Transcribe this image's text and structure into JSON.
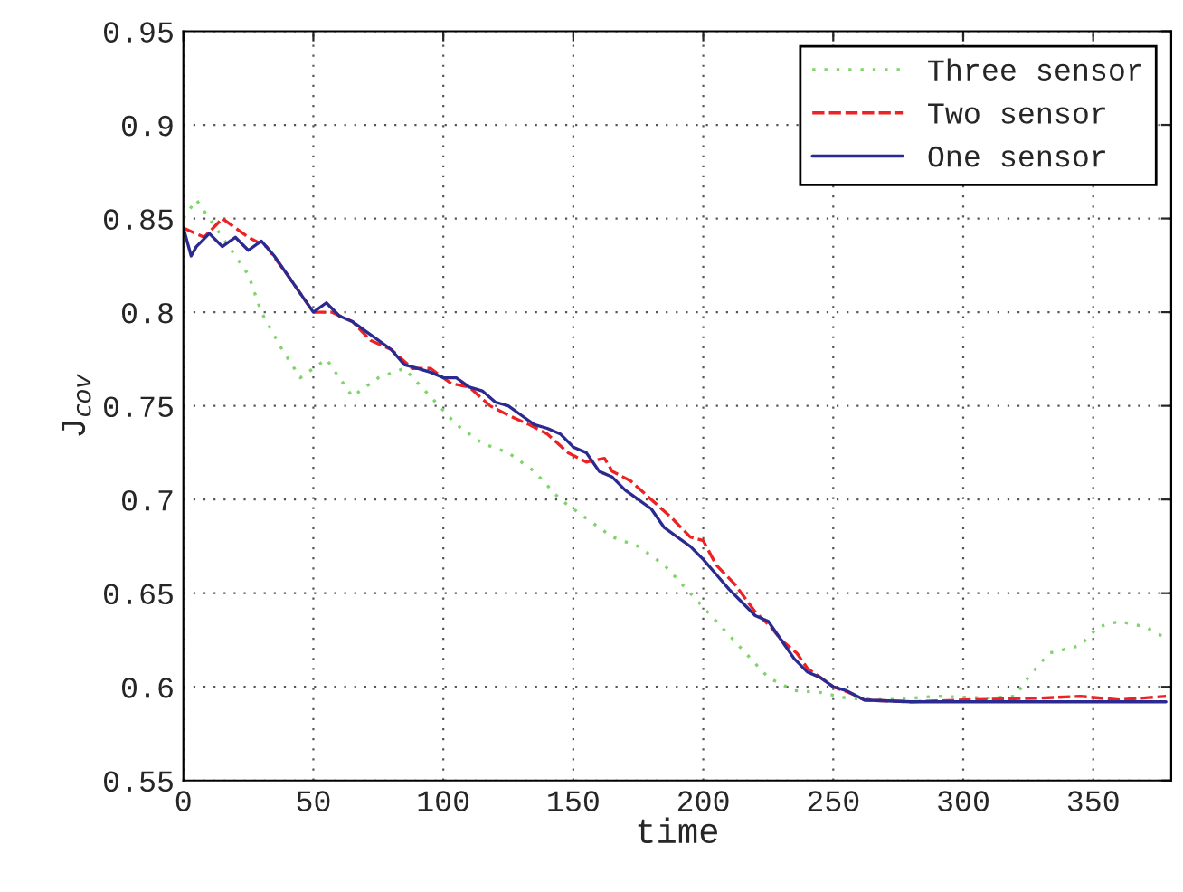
{
  "chart_data": {
    "type": "line",
    "xlabel": "time",
    "ylabel": "J$_{cov}$",
    "xlim": [
      0,
      380
    ],
    "xticks": [
      0,
      50,
      100,
      150,
      200,
      250,
      300,
      350
    ],
    "ylim": [
      0.55,
      0.95
    ],
    "yticks": [
      0.55,
      0.6,
      0.65,
      0.7,
      0.75,
      0.8,
      0.85,
      0.9,
      0.95
    ],
    "grid": true,
    "legend": "top right",
    "series": [
      {
        "name": "Three sensor",
        "color": "#7fd46a",
        "line_style": "dotted",
        "x": [
          0,
          5,
          15,
          25,
          30,
          38,
          45,
          55,
          65,
          75,
          85,
          95,
          105,
          115,
          125,
          135,
          145,
          155,
          165,
          175,
          185,
          195,
          205,
          215,
          225,
          235,
          245,
          255,
          270,
          290,
          310,
          320,
          325,
          333,
          345,
          352,
          360,
          370,
          378
        ],
        "values": [
          0.85,
          0.86,
          0.84,
          0.82,
          0.8,
          0.78,
          0.765,
          0.775,
          0.755,
          0.765,
          0.77,
          0.755,
          0.74,
          0.73,
          0.725,
          0.715,
          0.7,
          0.69,
          0.68,
          0.675,
          0.665,
          0.65,
          0.635,
          0.62,
          0.605,
          0.598,
          0.597,
          0.594,
          0.593,
          0.595,
          0.594,
          0.595,
          0.605,
          0.618,
          0.622,
          0.632,
          0.635,
          0.632,
          0.626
        ]
      },
      {
        "name": "Two sensor",
        "color": "#ee2222",
        "line_style": "dashed",
        "x": [
          0,
          8,
          15,
          25,
          32,
          40,
          50,
          57,
          65,
          72,
          80,
          88,
          95,
          103,
          110,
          118,
          125,
          133,
          140,
          148,
          155,
          162,
          165,
          172,
          180,
          188,
          195,
          200,
          205,
          212,
          220,
          226,
          230,
          236,
          240,
          246,
          250,
          256,
          262,
          280,
          300,
          330,
          345,
          360,
          378
        ],
        "values": [
          0.845,
          0.84,
          0.85,
          0.84,
          0.835,
          0.82,
          0.8,
          0.8,
          0.795,
          0.785,
          0.78,
          0.77,
          0.77,
          0.762,
          0.76,
          0.75,
          0.745,
          0.74,
          0.735,
          0.725,
          0.72,
          0.722,
          0.715,
          0.71,
          0.7,
          0.69,
          0.68,
          0.678,
          0.665,
          0.655,
          0.64,
          0.632,
          0.625,
          0.618,
          0.61,
          0.604,
          0.6,
          0.597,
          0.593,
          0.592,
          0.593,
          0.594,
          0.595,
          0.593,
          0.595
        ]
      },
      {
        "name": "One sensor",
        "color": "#2a2a90",
        "line_style": "solid",
        "x": [
          0,
          3,
          5,
          10,
          15,
          20,
          25,
          30,
          35,
          40,
          45,
          50,
          55,
          60,
          65,
          70,
          75,
          80,
          85,
          90,
          95,
          100,
          105,
          110,
          115,
          120,
          125,
          130,
          135,
          140,
          145,
          150,
          155,
          160,
          165,
          170,
          175,
          180,
          185,
          190,
          195,
          200,
          205,
          210,
          215,
          220,
          225,
          230,
          235,
          240,
          245,
          250,
          255,
          262,
          280,
          300,
          330,
          350,
          378
        ],
        "values": [
          0.845,
          0.83,
          0.835,
          0.842,
          0.835,
          0.84,
          0.833,
          0.838,
          0.83,
          0.82,
          0.81,
          0.8,
          0.805,
          0.798,
          0.795,
          0.79,
          0.785,
          0.78,
          0.772,
          0.77,
          0.768,
          0.765,
          0.765,
          0.76,
          0.758,
          0.752,
          0.75,
          0.745,
          0.74,
          0.738,
          0.735,
          0.728,
          0.725,
          0.715,
          0.712,
          0.705,
          0.7,
          0.695,
          0.685,
          0.68,
          0.675,
          0.668,
          0.66,
          0.652,
          0.645,
          0.638,
          0.635,
          0.625,
          0.615,
          0.608,
          0.605,
          0.6,
          0.598,
          0.593,
          0.592,
          0.592,
          0.592,
          0.592,
          0.592
        ]
      }
    ]
  }
}
